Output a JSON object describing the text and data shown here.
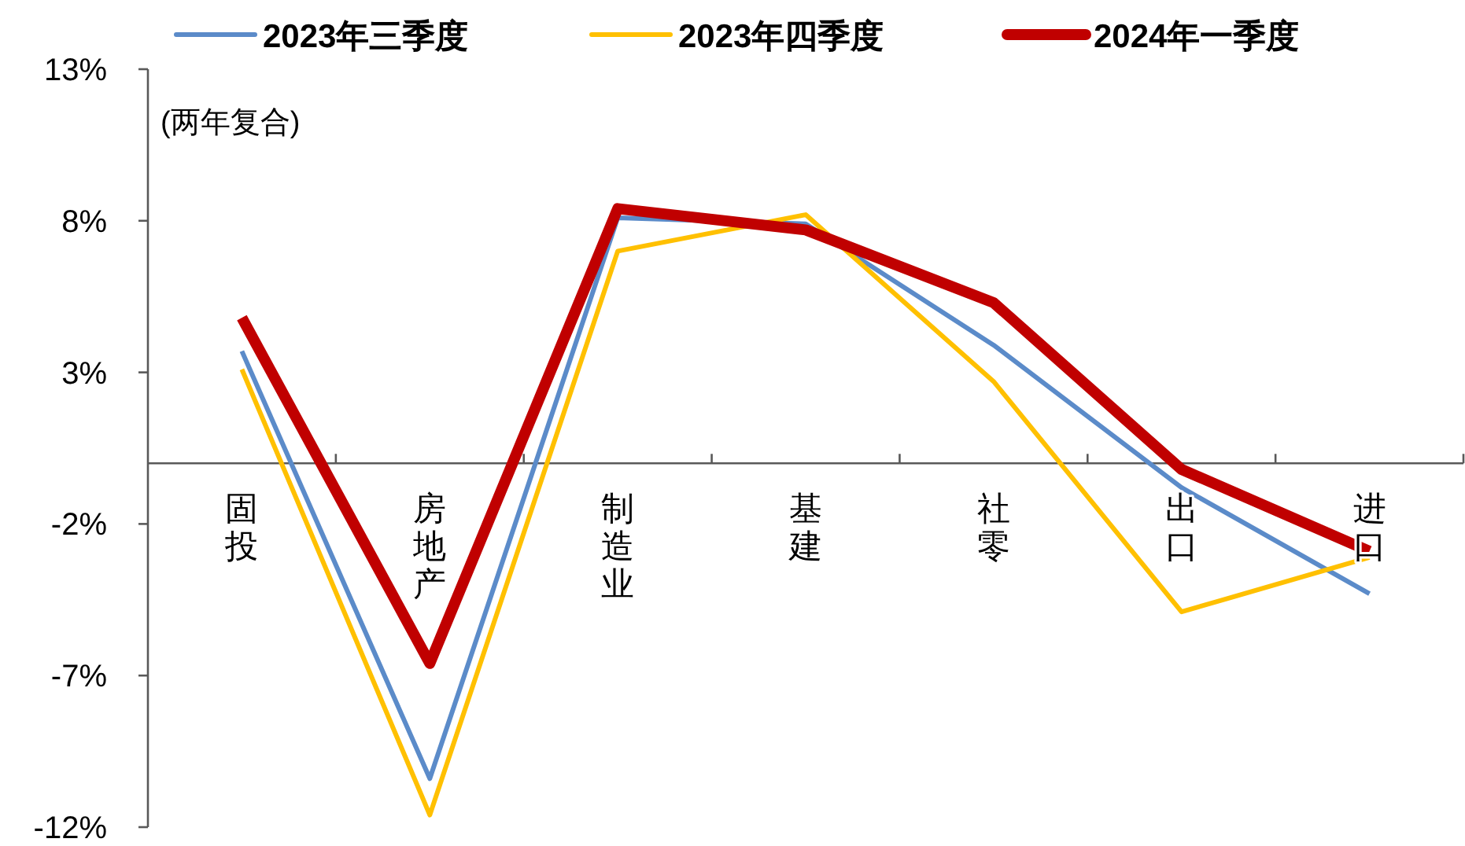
{
  "chart_data": {
    "type": "line",
    "categories": [
      "固投",
      "房地产",
      "制造业",
      "基建",
      "社零",
      "出口",
      "进口"
    ],
    "series": [
      {
        "name": "2023年三季度",
        "color": "#5b8bc9",
        "values": [
          3.7,
          -10.4,
          8.1,
          7.9,
          3.9,
          -0.8,
          -4.3
        ]
      },
      {
        "name": "2023年四季度",
        "color": "#ffc000",
        "values": [
          3.1,
          -11.6,
          7.0,
          8.2,
          2.7,
          -4.9,
          -3.1
        ]
      },
      {
        "name": "2024年一季度",
        "color": "#c00000",
        "values": [
          4.8,
          -6.6,
          8.4,
          7.7,
          5.3,
          -0.2,
          -2.9
        ]
      }
    ],
    "ylim": [
      -12,
      13
    ],
    "yticks": [
      {
        "value": -12,
        "label": "-12%"
      },
      {
        "value": -7,
        "label": "-7%"
      },
      {
        "value": -2,
        "label": "-2%"
      },
      {
        "value": 3,
        "label": "3%"
      },
      {
        "value": 8,
        "label": "8%"
      },
      {
        "value": 13,
        "label": "13%"
      }
    ],
    "legend": "top",
    "annotations": [
      "(两年复合)"
    ]
  }
}
